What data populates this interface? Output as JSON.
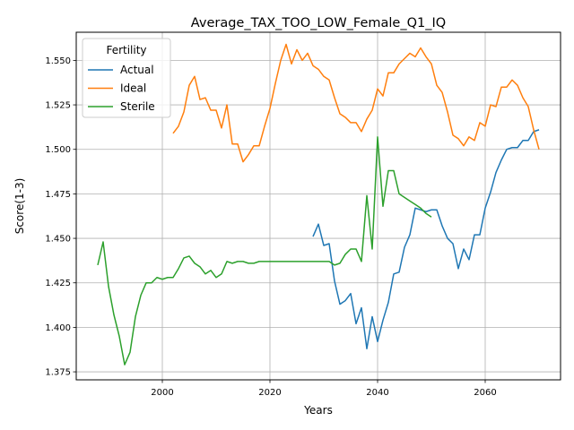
{
  "chart_data": {
    "type": "line",
    "title": "Average_TAX_TOO_LOW_Female_Q1_IQ",
    "xlabel": "Years",
    "ylabel": "Score(1-3)",
    "xlim": [
      1984,
      2074
    ],
    "ylim": [
      1.3705,
      1.5658
    ],
    "xticks": [
      2000,
      2020,
      2040,
      2060
    ],
    "yticks": [
      1.375,
      1.4,
      1.425,
      1.45,
      1.475,
      1.5,
      1.525,
      1.55
    ],
    "ytick_labels": [
      "1.375",
      "1.400",
      "1.425",
      "1.450",
      "1.475",
      "1.500",
      "1.525",
      "1.550"
    ],
    "grid": true,
    "legend": {
      "title": "Fertility",
      "placement": "top-left"
    },
    "series": [
      {
        "name": "Actual",
        "color": "#1f77b4",
        "x": [
          2028,
          2029,
          2030,
          2031,
          2032,
          2033,
          2034,
          2035,
          2036,
          2037,
          2038,
          2039,
          2040,
          2041,
          2042,
          2043,
          2044,
          2045,
          2046,
          2047,
          2048,
          2049,
          2050,
          2051,
          2052,
          2053,
          2054,
          2055,
          2056,
          2057,
          2058,
          2059,
          2060,
          2061,
          2062,
          2063,
          2064,
          2065,
          2066,
          2067,
          2068,
          2069,
          2070
        ],
        "y": [
          1.451,
          1.458,
          1.446,
          1.447,
          1.426,
          1.413,
          1.415,
          1.419,
          1.402,
          1.411,
          1.388,
          1.406,
          1.392,
          1.404,
          1.414,
          1.43,
          1.431,
          1.445,
          1.452,
          1.467,
          1.466,
          1.465,
          1.466,
          1.466,
          1.457,
          1.45,
          1.447,
          1.433,
          1.444,
          1.438,
          1.452,
          1.452,
          1.467,
          1.476,
          1.487,
          1.494,
          1.5,
          1.501,
          1.501,
          1.505,
          1.505,
          1.51,
          1.511
        ]
      },
      {
        "name": "Ideal",
        "color": "#ff7f0e",
        "x": [
          2002,
          2003,
          2004,
          2005,
          2006,
          2007,
          2008,
          2009,
          2010,
          2011,
          2012,
          2013,
          2014,
          2015,
          2016,
          2017,
          2018,
          2019,
          2020,
          2021,
          2022,
          2023,
          2024,
          2025,
          2026,
          2027,
          2028,
          2029,
          2030,
          2031,
          2032,
          2033,
          2034,
          2035,
          2036,
          2037,
          2038,
          2039,
          2040,
          2041,
          2042,
          2043,
          2044,
          2045,
          2046,
          2047,
          2048,
          2049,
          2050,
          2051,
          2052,
          2053,
          2054,
          2055,
          2056,
          2057,
          2058,
          2059,
          2060,
          2061,
          2062,
          2063,
          2064,
          2065,
          2066,
          2067,
          2068,
          2069,
          2070
        ],
        "y": [
          1.509,
          1.513,
          1.521,
          1.536,
          1.541,
          1.528,
          1.529,
          1.522,
          1.522,
          1.512,
          1.525,
          1.503,
          1.503,
          1.493,
          1.497,
          1.502,
          1.502,
          1.513,
          1.523,
          1.537,
          1.55,
          1.559,
          1.548,
          1.556,
          1.55,
          1.554,
          1.547,
          1.545,
          1.541,
          1.539,
          1.529,
          1.52,
          1.518,
          1.515,
          1.515,
          1.51,
          1.517,
          1.522,
          1.534,
          1.53,
          1.543,
          1.543,
          1.548,
          1.551,
          1.554,
          1.552,
          1.557,
          1.552,
          1.548,
          1.536,
          1.532,
          1.521,
          1.508,
          1.506,
          1.502,
          1.507,
          1.505,
          1.515,
          1.513,
          1.525,
          1.524,
          1.535,
          1.535,
          1.539,
          1.536,
          1.529,
          1.524,
          1.511,
          1.5
        ]
      },
      {
        "name": "Sterile",
        "color": "#2ca02c",
        "x": [
          1988,
          1989,
          1990,
          1991,
          1992,
          1993,
          1994,
          1995,
          1996,
          1997,
          1998,
          1999,
          2000,
          2001,
          2002,
          2003,
          2004,
          2005,
          2006,
          2007,
          2008,
          2009,
          2010,
          2011,
          2012,
          2013,
          2014,
          2015,
          2016,
          2017,
          2018,
          2019,
          2020,
          2021,
          2022,
          2023,
          2024,
          2025,
          2026,
          2027,
          2028,
          2029,
          2030,
          2031,
          2032,
          2033,
          2034,
          2035,
          2036,
          2037,
          2038,
          2039,
          2040,
          2041,
          2042,
          2043,
          2044,
          2045,
          2046,
          2047,
          2048,
          2049,
          2050
        ],
        "y": [
          1.435,
          1.448,
          1.423,
          1.407,
          1.395,
          1.379,
          1.386,
          1.406,
          1.418,
          1.425,
          1.425,
          1.428,
          1.427,
          1.428,
          1.428,
          1.433,
          1.439,
          1.44,
          1.436,
          1.434,
          1.43,
          1.432,
          1.428,
          1.43,
          1.437,
          1.436,
          1.437,
          1.437,
          1.436,
          1.436,
          1.437,
          1.437,
          1.437,
          1.437,
          1.437,
          1.437,
          1.437,
          1.437,
          1.437,
          1.437,
          1.437,
          1.437,
          1.437,
          1.437,
          1.435,
          1.436,
          1.441,
          1.444,
          1.444,
          1.437,
          1.474,
          1.444,
          1.507,
          1.468,
          1.488,
          1.488,
          1.475,
          1.473,
          1.471,
          1.469,
          1.467,
          1.464,
          1.462
        ]
      }
    ]
  }
}
